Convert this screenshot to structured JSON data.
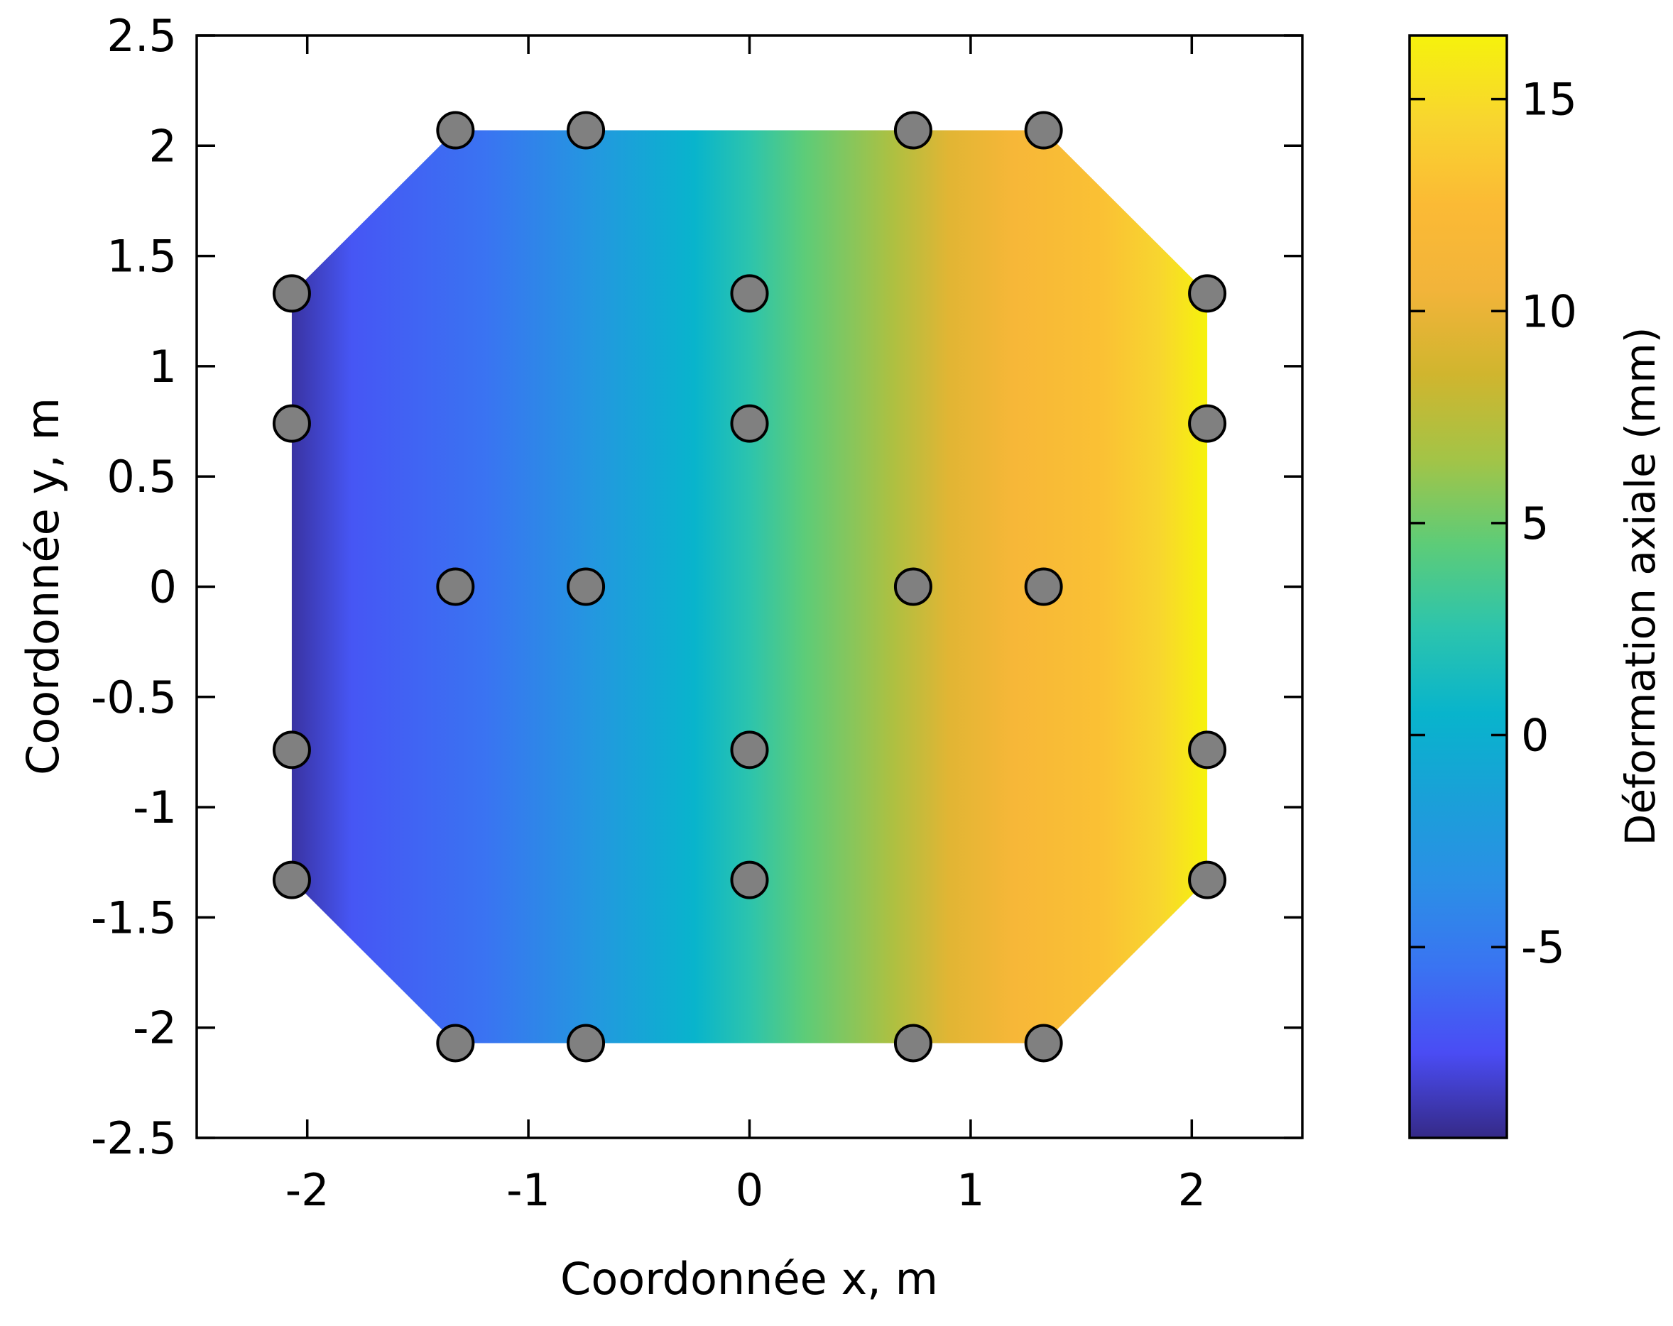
{
  "chart_data": {
    "type": "heatmap",
    "title": "",
    "xlabel": "Coordonnée x, m",
    "ylabel": "Coordonnée y, m",
    "xlim": [
      -2.5,
      2.5
    ],
    "ylim": [
      -2.5,
      2.5
    ],
    "xticks": [
      -2,
      -1,
      0,
      1,
      2
    ],
    "xtick_labels": [
      "-2",
      "-1",
      "0",
      "1",
      "2"
    ],
    "yticks": [
      2.5,
      2,
      1.5,
      1,
      0.5,
      0,
      -0.5,
      -1,
      -1.5,
      -2,
      -2.5
    ],
    "ytick_labels": [
      "2.5",
      "2",
      "1.5",
      "1",
      "0.5",
      "0",
      "-0.5",
      "-1",
      "-1.5",
      "-2",
      "-2.5"
    ],
    "colorbar": {
      "label": "Déformation axiale (mm)",
      "range": [
        -9.5,
        16.5
      ],
      "ticks": [
        15,
        10,
        5,
        0,
        -5
      ],
      "tick_labels": [
        "15",
        "10",
        "5",
        "0",
        "-5"
      ],
      "colormap": [
        "#352a87",
        "#4a4cf4",
        "#3a73f2",
        "#2b8fe6",
        "#1aa0d8",
        "#08b4cc",
        "#2cc4ad",
        "#5dcc78",
        "#a3c447",
        "#d0b52e",
        "#f2b43a",
        "#fbba35",
        "#f8d52f",
        "#f6f20c"
      ]
    },
    "field": {
      "description_units": "mm",
      "x_range": [
        -2.07,
        2.07
      ],
      "value_at_x": [
        {
          "x": -2.07,
          "value": -9.0
        },
        {
          "x": -1.8,
          "value": -7.0
        },
        {
          "x": -1.2,
          "value": -5.5
        },
        {
          "x": -0.7,
          "value": -2.5
        },
        {
          "x": -0.25,
          "value": 0.5
        },
        {
          "x": 0.0,
          "value": 2.5
        },
        {
          "x": 0.25,
          "value": 4.5
        },
        {
          "x": 0.65,
          "value": 7.0
        },
        {
          "x": 0.9,
          "value": 9.5
        },
        {
          "x": 1.2,
          "value": 11.5
        },
        {
          "x": 1.6,
          "value": 13.0
        },
        {
          "x": 1.85,
          "value": 14.5
        },
        {
          "x": 2.07,
          "value": 16.5
        }
      ],
      "boundary": [
        [
          -1.33,
          2.07
        ],
        [
          1.33,
          2.07
        ],
        [
          2.07,
          1.33
        ],
        [
          2.07,
          -1.33
        ],
        [
          1.33,
          -2.07
        ],
        [
          -1.33,
          -2.07
        ],
        [
          -2.07,
          -1.33
        ],
        [
          -2.07,
          1.33
        ]
      ]
    },
    "points": [
      {
        "x": -1.33,
        "y": 2.07
      },
      {
        "x": -0.74,
        "y": 2.07
      },
      {
        "x": 0.74,
        "y": 2.07
      },
      {
        "x": 1.33,
        "y": 2.07
      },
      {
        "x": -2.07,
        "y": 1.33
      },
      {
        "x": 0.0,
        "y": 1.33
      },
      {
        "x": 2.07,
        "y": 1.33
      },
      {
        "x": -2.07,
        "y": 0.74
      },
      {
        "x": 0.0,
        "y": 0.74
      },
      {
        "x": 2.07,
        "y": 0.74
      },
      {
        "x": -1.33,
        "y": 0.0
      },
      {
        "x": -0.74,
        "y": 0.0
      },
      {
        "x": 0.74,
        "y": 0.0
      },
      {
        "x": 1.33,
        "y": 0.0
      },
      {
        "x": -2.07,
        "y": -0.74
      },
      {
        "x": 0.0,
        "y": -0.74
      },
      {
        "x": 2.07,
        "y": -0.74
      },
      {
        "x": -2.07,
        "y": -1.33
      },
      {
        "x": 0.0,
        "y": -1.33
      },
      {
        "x": 2.07,
        "y": -1.33
      },
      {
        "x": -1.33,
        "y": -2.07
      },
      {
        "x": -0.74,
        "y": -2.07
      },
      {
        "x": 0.74,
        "y": -2.07
      },
      {
        "x": 1.33,
        "y": -2.07
      }
    ],
    "point_color": "#808080",
    "grid": false,
    "legend": "none"
  }
}
